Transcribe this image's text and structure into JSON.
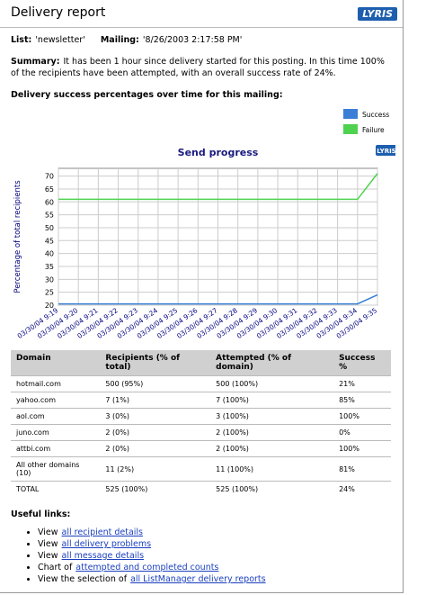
{
  "header": {
    "title": "Delivery report",
    "logo": "LYRIS"
  },
  "info": {
    "list_label": "List:",
    "list": "'newsletter'",
    "mailing_label": "Mailing:",
    "mailing": "'8/26/2003 2:17:58 PM'"
  },
  "summary": {
    "label": "Summary:",
    "text": "It has been 1 hour since delivery started for this posting. In this time 100% of the recipients have been attempted, with an overall success rate of 24%."
  },
  "chart_heading": "Delivery success percentages over time for this mailing:",
  "chart_data": {
    "type": "line",
    "title": "Send progress",
    "logo": "LYRIS",
    "y_label": "Percentage of total recipients",
    "categories": [
      "03/30/04 9:19",
      "03/30/04 9:20",
      "03/30/04 9:21",
      "03/30/04 9:22",
      "03/30/04 9:23",
      "03/30/04 9:24",
      "03/30/04 9:25",
      "03/30/04 9:26",
      "03/30/04 9:27",
      "03/30/04 9:28",
      "03/30/04 9:29",
      "03/30/04 9:30",
      "03/30/04 9:31",
      "03/30/04 9:32",
      "03/30/04 9:33",
      "03/30/04 9:34",
      "03/30/04 9:35"
    ],
    "series": [
      {
        "name": "Success",
        "color": "#3a7fd5",
        "values": [
          20.5,
          20.5,
          20.5,
          20.5,
          20.5,
          20.5,
          20.5,
          20.5,
          20.5,
          20.5,
          20.5,
          20.5,
          20.5,
          20.5,
          20.5,
          20.5,
          24
        ]
      },
      {
        "name": "Failure",
        "color": "#4fd24f",
        "values": [
          61,
          61,
          61,
          61,
          61,
          61,
          61,
          61,
          61,
          61,
          61,
          61,
          61,
          61,
          61,
          61,
          71
        ]
      }
    ],
    "ylim": [
      20,
      73
    ],
    "yticks": [
      20,
      25,
      30,
      35,
      40,
      45,
      50,
      55,
      60,
      65,
      70
    ],
    "grid": true,
    "legend": "top-right"
  },
  "table": {
    "columns": [
      "Domain",
      "Recipients (% of total)",
      "Attempted (% of domain)",
      "Success %"
    ],
    "rows": [
      [
        "hotmail.com",
        "500 (95%)",
        "500 (100%)",
        "21%"
      ],
      [
        "yahoo.com",
        "7 (1%)",
        "7 (100%)",
        "85%"
      ],
      [
        "aol.com",
        "3 (0%)",
        "3 (100%)",
        "100%"
      ],
      [
        "juno.com",
        "2 (0%)",
        "2 (100%)",
        "0%"
      ],
      [
        "attbi.com",
        "2 (0%)",
        "2 (100%)",
        "100%"
      ],
      [
        "All other domains (10)",
        "11 (2%)",
        "11 (100%)",
        "81%"
      ],
      [
        "TOTAL",
        "525 (100%)",
        "525 (100%)",
        "24%"
      ]
    ]
  },
  "links": {
    "heading": "Useful links:",
    "items": [
      {
        "text": "View",
        "link": "all recipient details"
      },
      {
        "text": "View",
        "link": "all delivery problems"
      },
      {
        "text": "View",
        "link": "all message details"
      },
      {
        "text": "Chart of",
        "link": "attempted and completed counts"
      },
      {
        "text": "View the selection of",
        "link": "all ListManager delivery reports"
      }
    ]
  }
}
